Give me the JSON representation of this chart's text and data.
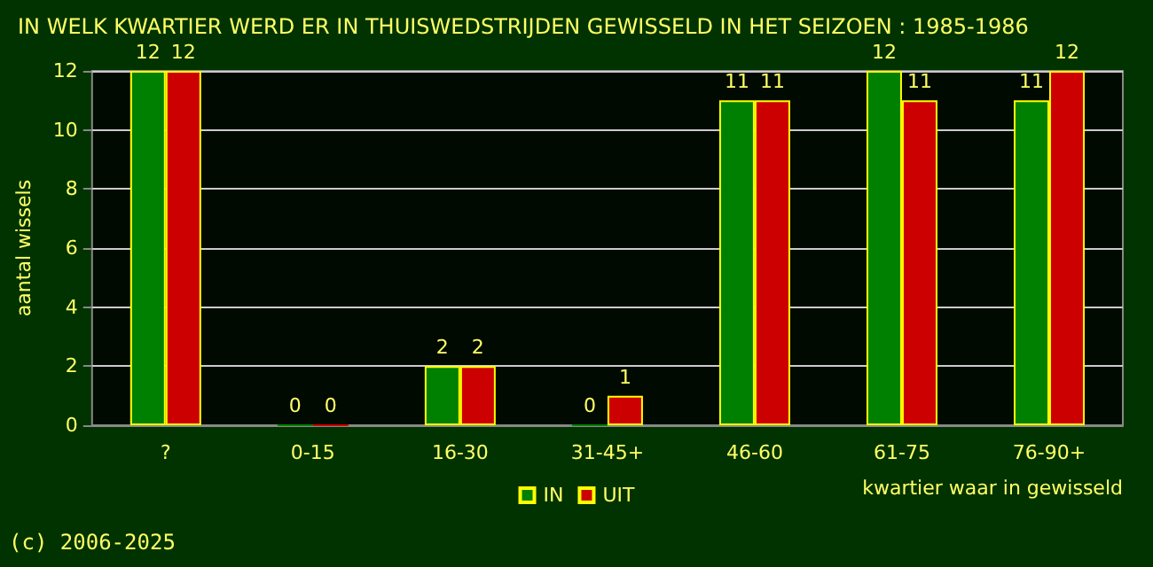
{
  "chart_data": {
    "type": "bar",
    "title": "IN WELK KWARTIER WERD ER IN THUISWEDSTRIJDEN GEWISSELD IN HET SEIZOEN : 1985-1986",
    "xlabel": "kwartier waar in gewisseld",
    "ylabel": "aantal wissels",
    "categories": [
      "?",
      "0-15",
      "16-30",
      "31-45+",
      "46-60",
      "61-75",
      "76-90+"
    ],
    "series": [
      {
        "name": "IN",
        "color": "#008000",
        "values": [
          12,
          0,
          2,
          0,
          11,
          12,
          11
        ]
      },
      {
        "name": "UIT",
        "color": "#cc0000",
        "values": [
          12,
          0,
          2,
          1,
          11,
          11,
          12
        ]
      }
    ],
    "ylim": [
      0,
      12
    ],
    "yticks": [
      0,
      2,
      4,
      6,
      8,
      10,
      12
    ],
    "grid": "y",
    "legend": "bottom",
    "data_labels": true,
    "annotations": [
      "(c) 2006-2025"
    ]
  }
}
